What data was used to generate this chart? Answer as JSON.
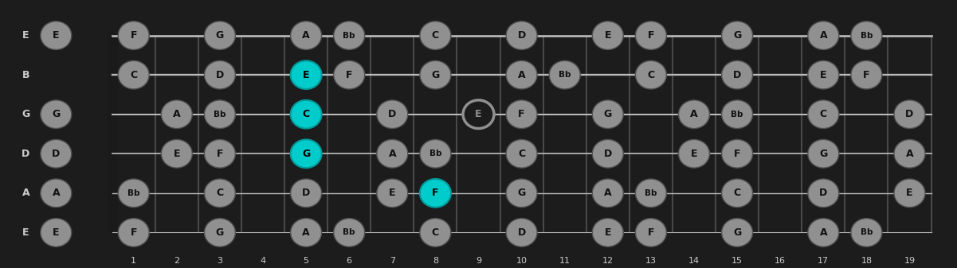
{
  "bg_color": "#3d3d3d",
  "fretboard_color": "#1c1c1c",
  "string_color": "#bbbbbb",
  "fret_color": "#484848",
  "nut_color": "#111111",
  "note_fill": "#909090",
  "note_edge": "#505050",
  "highlight_fill": "#00cccc",
  "highlight_edge": "#009999",
  "open_ring_fill": "#1c1c1c",
  "open_ring_edge": "#909090",
  "text_dark": "#111111",
  "text_open": "#aaaaaa",
  "label_color": "#cccccc",
  "fret_label_color": "#cccccc",
  "num_frets": 19,
  "num_strings": 6,
  "string_names": [
    "E",
    "B",
    "G",
    "D",
    "A",
    "E"
  ],
  "fret_numbers": [
    1,
    2,
    3,
    4,
    5,
    6,
    7,
    8,
    9,
    10,
    11,
    12,
    13,
    14,
    15,
    16,
    17,
    18,
    19
  ],
  "notes": [
    {
      "string": 0,
      "fret": 0,
      "note": "E",
      "type": "normal"
    },
    {
      "string": 0,
      "fret": 1,
      "note": "F",
      "type": "normal"
    },
    {
      "string": 0,
      "fret": 3,
      "note": "G",
      "type": "normal"
    },
    {
      "string": 0,
      "fret": 5,
      "note": "A",
      "type": "normal"
    },
    {
      "string": 0,
      "fret": 6,
      "note": "Bb",
      "type": "normal"
    },
    {
      "string": 0,
      "fret": 8,
      "note": "C",
      "type": "normal"
    },
    {
      "string": 0,
      "fret": 10,
      "note": "D",
      "type": "normal"
    },
    {
      "string": 0,
      "fret": 12,
      "note": "E",
      "type": "normal"
    },
    {
      "string": 0,
      "fret": 13,
      "note": "F",
      "type": "normal"
    },
    {
      "string": 0,
      "fret": 15,
      "note": "G",
      "type": "normal"
    },
    {
      "string": 0,
      "fret": 17,
      "note": "A",
      "type": "normal"
    },
    {
      "string": 0,
      "fret": 18,
      "note": "Bb",
      "type": "normal"
    },
    {
      "string": 1,
      "fret": 1,
      "note": "C",
      "type": "normal"
    },
    {
      "string": 1,
      "fret": 3,
      "note": "D",
      "type": "normal"
    },
    {
      "string": 1,
      "fret": 5,
      "note": "E",
      "type": "highlight"
    },
    {
      "string": 1,
      "fret": 6,
      "note": "F",
      "type": "normal"
    },
    {
      "string": 1,
      "fret": 8,
      "note": "G",
      "type": "normal"
    },
    {
      "string": 1,
      "fret": 10,
      "note": "A",
      "type": "normal"
    },
    {
      "string": 1,
      "fret": 11,
      "note": "Bb",
      "type": "normal"
    },
    {
      "string": 1,
      "fret": 13,
      "note": "C",
      "type": "normal"
    },
    {
      "string": 1,
      "fret": 15,
      "note": "D",
      "type": "normal"
    },
    {
      "string": 1,
      "fret": 17,
      "note": "E",
      "type": "normal"
    },
    {
      "string": 1,
      "fret": 18,
      "note": "F",
      "type": "normal"
    },
    {
      "string": 2,
      "fret": 0,
      "note": "G",
      "type": "normal"
    },
    {
      "string": 2,
      "fret": 2,
      "note": "A",
      "type": "normal"
    },
    {
      "string": 2,
      "fret": 3,
      "note": "Bb",
      "type": "normal"
    },
    {
      "string": 2,
      "fret": 5,
      "note": "C",
      "type": "highlight"
    },
    {
      "string": 2,
      "fret": 7,
      "note": "D",
      "type": "normal"
    },
    {
      "string": 2,
      "fret": 9,
      "note": "E",
      "type": "open"
    },
    {
      "string": 2,
      "fret": 10,
      "note": "F",
      "type": "normal"
    },
    {
      "string": 2,
      "fret": 12,
      "note": "G",
      "type": "normal"
    },
    {
      "string": 2,
      "fret": 14,
      "note": "A",
      "type": "normal"
    },
    {
      "string": 2,
      "fret": 15,
      "note": "Bb",
      "type": "normal"
    },
    {
      "string": 2,
      "fret": 17,
      "note": "C",
      "type": "normal"
    },
    {
      "string": 2,
      "fret": 19,
      "note": "D",
      "type": "normal"
    },
    {
      "string": 3,
      "fret": 0,
      "note": "D",
      "type": "normal"
    },
    {
      "string": 3,
      "fret": 2,
      "note": "E",
      "type": "normal"
    },
    {
      "string": 3,
      "fret": 3,
      "note": "F",
      "type": "normal"
    },
    {
      "string": 3,
      "fret": 5,
      "note": "G",
      "type": "highlight"
    },
    {
      "string": 3,
      "fret": 7,
      "note": "A",
      "type": "normal"
    },
    {
      "string": 3,
      "fret": 8,
      "note": "Bb",
      "type": "normal"
    },
    {
      "string": 3,
      "fret": 10,
      "note": "C",
      "type": "normal"
    },
    {
      "string": 3,
      "fret": 12,
      "note": "D",
      "type": "normal"
    },
    {
      "string": 3,
      "fret": 14,
      "note": "E",
      "type": "normal"
    },
    {
      "string": 3,
      "fret": 15,
      "note": "F",
      "type": "normal"
    },
    {
      "string": 3,
      "fret": 17,
      "note": "G",
      "type": "normal"
    },
    {
      "string": 3,
      "fret": 19,
      "note": "A",
      "type": "normal"
    },
    {
      "string": 4,
      "fret": 0,
      "note": "A",
      "type": "normal"
    },
    {
      "string": 4,
      "fret": 1,
      "note": "Bb",
      "type": "normal"
    },
    {
      "string": 4,
      "fret": 3,
      "note": "C",
      "type": "normal"
    },
    {
      "string": 4,
      "fret": 5,
      "note": "D",
      "type": "normal"
    },
    {
      "string": 4,
      "fret": 7,
      "note": "E",
      "type": "normal"
    },
    {
      "string": 4,
      "fret": 8,
      "note": "F",
      "type": "highlight"
    },
    {
      "string": 4,
      "fret": 10,
      "note": "G",
      "type": "normal"
    },
    {
      "string": 4,
      "fret": 12,
      "note": "A",
      "type": "normal"
    },
    {
      "string": 4,
      "fret": 13,
      "note": "Bb",
      "type": "normal"
    },
    {
      "string": 4,
      "fret": 15,
      "note": "C",
      "type": "normal"
    },
    {
      "string": 4,
      "fret": 17,
      "note": "D",
      "type": "normal"
    },
    {
      "string": 4,
      "fret": 19,
      "note": "E",
      "type": "normal"
    },
    {
      "string": 5,
      "fret": 0,
      "note": "E",
      "type": "normal"
    },
    {
      "string": 5,
      "fret": 1,
      "note": "F",
      "type": "normal"
    },
    {
      "string": 5,
      "fret": 3,
      "note": "G",
      "type": "normal"
    },
    {
      "string": 5,
      "fret": 5,
      "note": "A",
      "type": "normal"
    },
    {
      "string": 5,
      "fret": 6,
      "note": "Bb",
      "type": "normal"
    },
    {
      "string": 5,
      "fret": 8,
      "note": "C",
      "type": "normal"
    },
    {
      "string": 5,
      "fret": 10,
      "note": "D",
      "type": "normal"
    },
    {
      "string": 5,
      "fret": 12,
      "note": "E",
      "type": "normal"
    },
    {
      "string": 5,
      "fret": 13,
      "note": "F",
      "type": "normal"
    },
    {
      "string": 5,
      "fret": 15,
      "note": "G",
      "type": "normal"
    },
    {
      "string": 5,
      "fret": 17,
      "note": "A",
      "type": "normal"
    },
    {
      "string": 5,
      "fret": 18,
      "note": "Bb",
      "type": "normal"
    }
  ]
}
